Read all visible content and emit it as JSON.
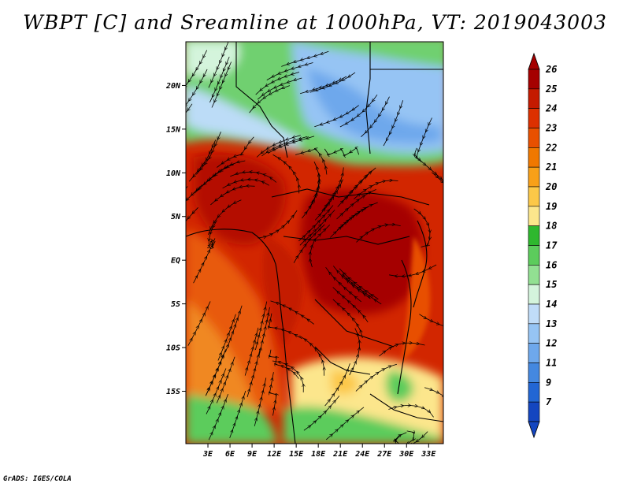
{
  "title": "WBPT [C] and Sreamline at 1000hPa, VT: 2019043003",
  "credit": "GrADS: IGES/COLA",
  "map": {
    "lat_range": [
      -21,
      25
    ],
    "lon_range": [
      0,
      35
    ],
    "lat_ticks": [
      {
        "value": 20,
        "label": "20N"
      },
      {
        "value": 15,
        "label": "15N"
      },
      {
        "value": 10,
        "label": "10N"
      },
      {
        "value": 5,
        "label": "5N"
      },
      {
        "value": 0,
        "label": "EQ"
      },
      {
        "value": -5,
        "label": "5S"
      },
      {
        "value": -10,
        "label": "10S"
      },
      {
        "value": -15,
        "label": "15S"
      }
    ],
    "lon_ticks": [
      {
        "value": 3,
        "label": "3E"
      },
      {
        "value": 6,
        "label": "6E"
      },
      {
        "value": 9,
        "label": "9E"
      },
      {
        "value": 12,
        "label": "12E"
      },
      {
        "value": 15,
        "label": "15E"
      },
      {
        "value": 18,
        "label": "18E"
      },
      {
        "value": 21,
        "label": "21E"
      },
      {
        "value": 24,
        "label": "24E"
      },
      {
        "value": 27,
        "label": "27E"
      },
      {
        "value": 30,
        "label": "30E"
      },
      {
        "value": 33,
        "label": "33E"
      }
    ]
  },
  "colorbar": {
    "labels": [
      "26",
      "25",
      "24",
      "23",
      "22",
      "21",
      "20",
      "19",
      "18",
      "17",
      "16",
      "15",
      "14",
      "13",
      "12",
      "11",
      "9",
      "7"
    ],
    "colors": [
      "#a50000",
      "#c41a00",
      "#dc3000",
      "#e85000",
      "#f07800",
      "#f8a018",
      "#fcc848",
      "#fce68c",
      "#2eb82e",
      "#5ccc5c",
      "#92e092",
      "#d4f4dc",
      "#c0dcf8",
      "#96c4f4",
      "#6ea8ec",
      "#4488e0",
      "#2266d4",
      "#1446c0"
    ]
  },
  "colors": {
    "hot": "#c41a00",
    "green": "#5ccc5c",
    "blue": "#96c4f4"
  }
}
